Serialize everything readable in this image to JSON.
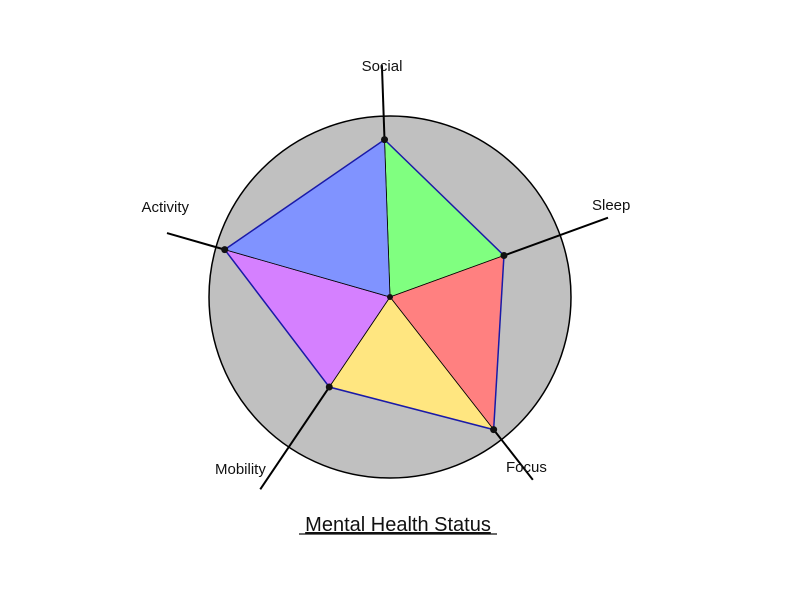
{
  "chart_data": {
    "type": "radar",
    "title": "Mental Health Status",
    "axes": [
      "Social",
      "Sleep",
      "Focus",
      "Mobility",
      "Activity"
    ],
    "values": [
      0.87,
      0.67,
      0.93,
      0.6,
      0.95
    ],
    "range": [
      0,
      1
    ],
    "colors": {
      "background": "#c0c0c0",
      "outline": "#000000",
      "data_line": "#1a1aa8",
      "segments": [
        "#80ff80",
        "#ff8080",
        "#ffe680",
        "#d580ff",
        "#8093ff"
      ]
    },
    "grid": false,
    "legend": "none"
  }
}
